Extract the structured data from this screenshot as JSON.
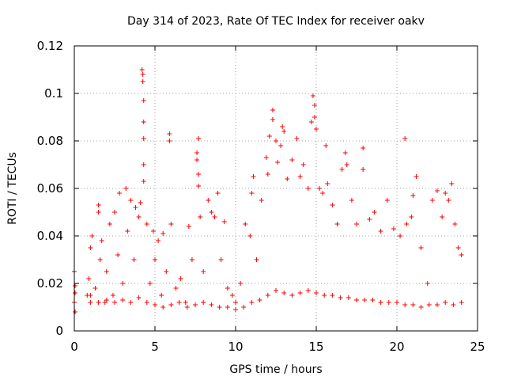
{
  "chart_data": {
    "type": "scatter",
    "title": "Day 314 of 2023, Rate Of TEC Index for receiver oakv",
    "xlabel": "GPS time / hours",
    "ylabel": "ROTI / TECUs",
    "xlim": [
      0,
      25
    ],
    "ylim": [
      0,
      0.12
    ],
    "x_ticks": [
      0,
      5,
      10,
      15,
      20,
      25
    ],
    "x_tick_labels": [
      "0",
      "5",
      "10",
      "15",
      "20",
      "25"
    ],
    "y_ticks": [
      0,
      0.02,
      0.04,
      0.06,
      0.08,
      0.1,
      0.12
    ],
    "y_tick_labels": [
      "0",
      "0.02",
      "0.04",
      "0.06",
      "0.08",
      "0.1",
      "0.12"
    ],
    "grid": true,
    "legend": "none",
    "marker": "plus",
    "color": "#ff0000",
    "series": [
      {
        "points": [
          [
            0.0,
            0.012
          ],
          [
            0.0,
            0.025
          ],
          [
            0.05,
            0.008
          ],
          [
            0.05,
            0.019
          ],
          [
            0.05,
            0.016
          ],
          [
            0.8,
            0.015
          ],
          [
            0.9,
            0.022
          ],
          [
            1.0,
            0.035
          ],
          [
            1.0,
            0.012
          ],
          [
            1.1,
            0.04
          ],
          [
            1.3,
            0.018
          ],
          [
            1.5,
            0.05
          ],
          [
            1.5,
            0.053
          ],
          [
            1.6,
            0.03
          ],
          [
            1.7,
            0.038
          ],
          [
            1.9,
            0.012
          ],
          [
            2.0,
            0.025
          ],
          [
            2.2,
            0.045
          ],
          [
            2.4,
            0.015
          ],
          [
            2.5,
            0.05
          ],
          [
            2.7,
            0.032
          ],
          [
            2.8,
            0.058
          ],
          [
            3.0,
            0.02
          ],
          [
            3.2,
            0.06
          ],
          [
            3.3,
            0.042
          ],
          [
            3.5,
            0.055
          ],
          [
            3.7,
            0.03
          ],
          [
            3.8,
            0.052
          ],
          [
            4.0,
            0.048
          ],
          [
            4.1,
            0.054
          ],
          [
            4.2,
            0.11
          ],
          [
            4.25,
            0.108
          ],
          [
            4.25,
            0.105
          ],
          [
            4.3,
            0.097
          ],
          [
            4.3,
            0.088
          ],
          [
            4.3,
            0.081
          ],
          [
            4.3,
            0.07
          ],
          [
            4.3,
            0.063
          ],
          [
            4.5,
            0.045
          ],
          [
            4.7,
            0.02
          ],
          [
            4.9,
            0.042
          ],
          [
            5.0,
            0.03
          ],
          [
            5.2,
            0.038
          ],
          [
            5.4,
            0.015
          ],
          [
            5.5,
            0.041
          ],
          [
            5.7,
            0.025
          ],
          [
            5.9,
            0.08
          ],
          [
            5.9,
            0.083
          ],
          [
            6.0,
            0.045
          ],
          [
            6.3,
            0.018
          ],
          [
            6.6,
            0.022
          ],
          [
            6.9,
            0.012
          ],
          [
            7.1,
            0.044
          ],
          [
            7.3,
            0.03
          ],
          [
            7.6,
            0.075
          ],
          [
            7.6,
            0.072
          ],
          [
            7.7,
            0.081
          ],
          [
            7.7,
            0.066
          ],
          [
            7.7,
            0.061
          ],
          [
            7.8,
            0.048
          ],
          [
            8.0,
            0.025
          ],
          [
            8.3,
            0.055
          ],
          [
            8.5,
            0.05
          ],
          [
            8.7,
            0.048
          ],
          [
            8.9,
            0.058
          ],
          [
            9.1,
            0.03
          ],
          [
            9.3,
            0.046
          ],
          [
            9.5,
            0.018
          ],
          [
            9.8,
            0.015
          ],
          [
            10.0,
            0.012
          ],
          [
            10.3,
            0.02
          ],
          [
            10.6,
            0.045
          ],
          [
            10.9,
            0.04
          ],
          [
            11.0,
            0.058
          ],
          [
            11.1,
            0.065
          ],
          [
            11.3,
            0.03
          ],
          [
            11.6,
            0.055
          ],
          [
            11.9,
            0.073
          ],
          [
            12.0,
            0.066
          ],
          [
            12.1,
            0.082
          ],
          [
            12.3,
            0.093
          ],
          [
            12.3,
            0.089
          ],
          [
            12.5,
            0.08
          ],
          [
            12.6,
            0.071
          ],
          [
            12.8,
            0.078
          ],
          [
            12.9,
            0.086
          ],
          [
            13.0,
            0.084
          ],
          [
            13.2,
            0.064
          ],
          [
            13.5,
            0.072
          ],
          [
            13.8,
            0.081
          ],
          [
            14.0,
            0.065
          ],
          [
            14.2,
            0.07
          ],
          [
            14.5,
            0.06
          ],
          [
            14.7,
            0.088
          ],
          [
            14.8,
            0.099
          ],
          [
            14.9,
            0.095
          ],
          [
            14.9,
            0.09
          ],
          [
            15.0,
            0.085
          ],
          [
            15.2,
            0.06
          ],
          [
            15.4,
            0.058
          ],
          [
            15.6,
            0.078
          ],
          [
            15.7,
            0.062
          ],
          [
            16.0,
            0.053
          ],
          [
            16.3,
            0.045
          ],
          [
            16.6,
            0.068
          ],
          [
            16.8,
            0.075
          ],
          [
            16.9,
            0.07
          ],
          [
            17.2,
            0.055
          ],
          [
            17.5,
            0.045
          ],
          [
            17.9,
            0.077
          ],
          [
            17.9,
            0.068
          ],
          [
            18.3,
            0.047
          ],
          [
            18.6,
            0.05
          ],
          [
            19.0,
            0.042
          ],
          [
            19.4,
            0.055
          ],
          [
            19.8,
            0.043
          ],
          [
            20.2,
            0.04
          ],
          [
            20.5,
            0.081
          ],
          [
            20.6,
            0.045
          ],
          [
            20.9,
            0.048
          ],
          [
            21.0,
            0.057
          ],
          [
            21.2,
            0.065
          ],
          [
            21.5,
            0.035
          ],
          [
            21.9,
            0.02
          ],
          [
            22.2,
            0.055
          ],
          [
            22.5,
            0.059
          ],
          [
            22.8,
            0.048
          ],
          [
            23.0,
            0.058
          ],
          [
            23.2,
            0.055
          ],
          [
            23.4,
            0.062
          ],
          [
            23.6,
            0.045
          ],
          [
            23.8,
            0.035
          ],
          [
            24.0,
            0.032
          ],
          [
            1.0,
            0.015
          ],
          [
            1.5,
            0.012
          ],
          [
            2.0,
            0.013
          ],
          [
            2.5,
            0.012
          ],
          [
            3.0,
            0.013
          ],
          [
            3.5,
            0.012
          ],
          [
            4.0,
            0.014
          ],
          [
            4.5,
            0.012
          ],
          [
            5.0,
            0.011
          ],
          [
            5.5,
            0.01
          ],
          [
            6.0,
            0.011
          ],
          [
            6.5,
            0.012
          ],
          [
            7.0,
            0.01
          ],
          [
            7.5,
            0.011
          ],
          [
            8.0,
            0.012
          ],
          [
            8.5,
            0.011
          ],
          [
            9.0,
            0.01
          ],
          [
            9.5,
            0.01
          ],
          [
            10.0,
            0.009
          ],
          [
            10.5,
            0.01
          ],
          [
            11.0,
            0.012
          ],
          [
            11.5,
            0.013
          ],
          [
            12.0,
            0.015
          ],
          [
            12.5,
            0.017
          ],
          [
            13.0,
            0.016
          ],
          [
            13.5,
            0.015
          ],
          [
            14.0,
            0.016
          ],
          [
            14.5,
            0.017
          ],
          [
            15.0,
            0.016
          ],
          [
            15.5,
            0.015
          ],
          [
            16.0,
            0.015
          ],
          [
            16.5,
            0.014
          ],
          [
            17.0,
            0.014
          ],
          [
            17.5,
            0.013
          ],
          [
            18.0,
            0.013
          ],
          [
            18.5,
            0.013
          ],
          [
            19.0,
            0.012
          ],
          [
            19.5,
            0.012
          ],
          [
            20.0,
            0.012
          ],
          [
            20.5,
            0.011
          ],
          [
            21.0,
            0.011
          ],
          [
            21.5,
            0.01
          ],
          [
            22.0,
            0.011
          ],
          [
            22.5,
            0.011
          ],
          [
            23.0,
            0.012
          ],
          [
            23.5,
            0.011
          ],
          [
            24.0,
            0.012
          ]
        ]
      }
    ]
  }
}
